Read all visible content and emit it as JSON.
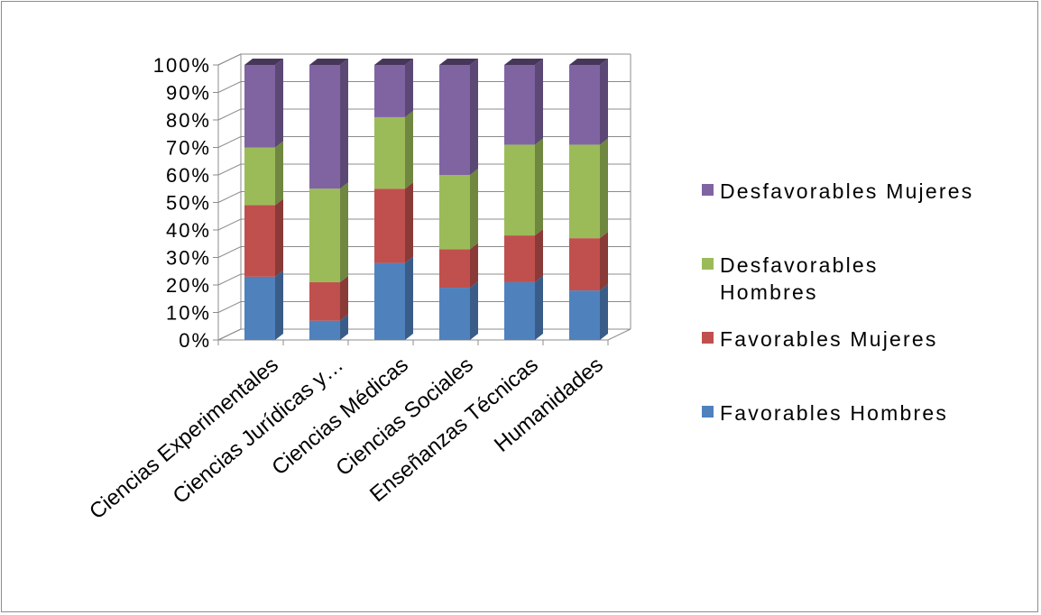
{
  "chart_data": {
    "type": "bar",
    "stacked": true,
    "percent_stacked": true,
    "three_d": true,
    "categories": [
      "Ciencias Experimentales",
      "Ciencias Jurídicas y…",
      "Ciencias Médicas",
      "Ciencias Sociales",
      "Enseñanzas Técnicas",
      "Humanidades"
    ],
    "series": [
      {
        "name": "Favorables Hombres",
        "color": "#4f81bd",
        "values": [
          23,
          7,
          28,
          19,
          21,
          18
        ]
      },
      {
        "name": "Favorables Mujeres",
        "color": "#c0504d",
        "values": [
          26,
          14,
          27,
          14,
          17,
          19
        ]
      },
      {
        "name": "Desfavorables Hombres",
        "color": "#9bbb59",
        "values": [
          21,
          34,
          26,
          27,
          33,
          34
        ]
      },
      {
        "name": "Desfavorables Mujeres",
        "color": "#8064a2",
        "values": [
          30,
          45,
          19,
          40,
          29,
          29
        ]
      }
    ],
    "y_ticks": [
      "0%",
      "10%",
      "20%",
      "30%",
      "40%",
      "50%",
      "60%",
      "70%",
      "80%",
      "90%",
      "100%"
    ],
    "ylim": [
      0,
      100
    ],
    "grid": true,
    "legend_position": "right",
    "title": "",
    "xlabel": "",
    "ylabel": ""
  }
}
